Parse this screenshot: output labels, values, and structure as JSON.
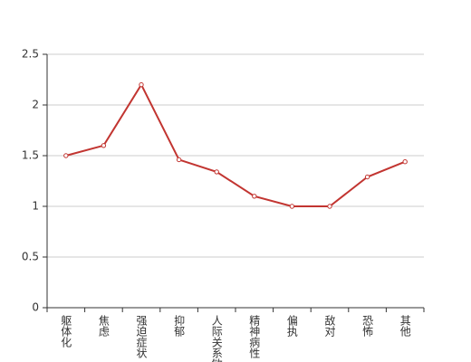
{
  "chart_data": {
    "type": "line",
    "categories": [
      "躯体化",
      "焦虑",
      "强迫症状",
      "抑郁",
      "人际关系敏感",
      "精神病性",
      "偏执",
      "敌对",
      "恐怖",
      "其他"
    ],
    "values": [
      1.5,
      1.6,
      2.2,
      1.46,
      1.34,
      1.1,
      1.0,
      1.0,
      1.29,
      1.44
    ],
    "color": "#c23531",
    "ylim": [
      0,
      2.5
    ],
    "yticks": [
      0,
      0.5,
      1,
      1.5,
      2,
      2.5
    ],
    "grid": true
  }
}
